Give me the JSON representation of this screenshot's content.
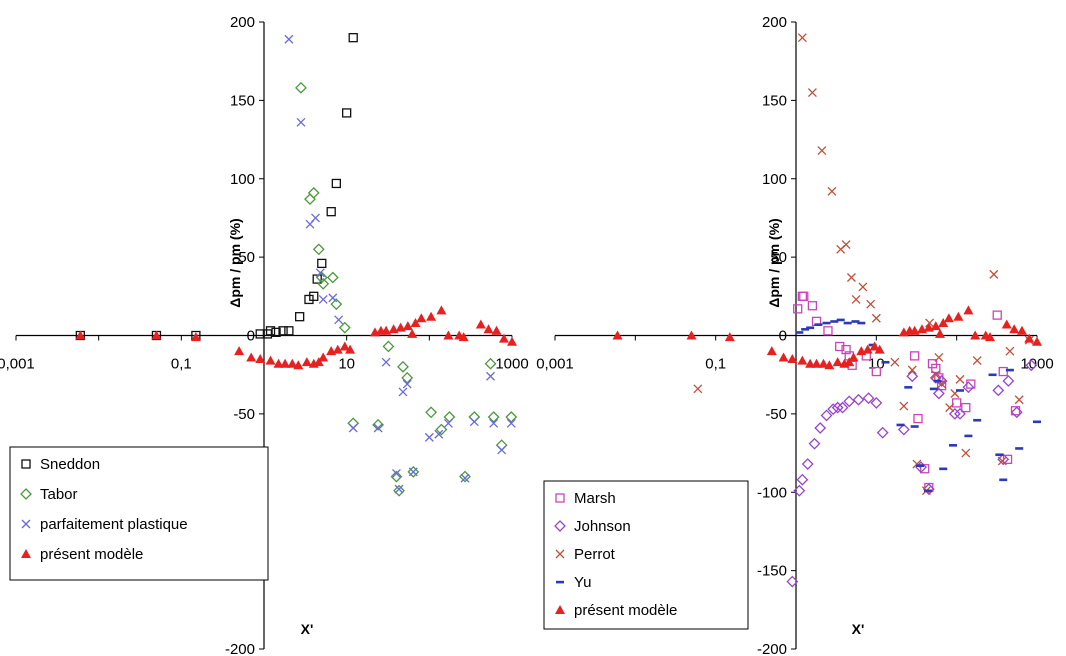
{
  "chart_data": [
    {
      "type": "scatter",
      "xlabel": "X'",
      "ylabel": "Δpm / pm (%)",
      "xscale": "log",
      "xlim": [
        0.001,
        1000
      ],
      "ylim": [
        -200,
        200
      ],
      "x_ticks": [
        "0,001",
        "0,1",
        "10",
        "1000"
      ],
      "y_ticks": [
        "200",
        "150",
        "100",
        "50",
        "0",
        "-50",
        "-100",
        "-150",
        "-200"
      ],
      "legend_position": "bottom-left",
      "series": [
        {
          "name": "Sneddon",
          "marker": "square",
          "color": "#111111",
          "points": [
            [
              0.006,
              0
            ],
            [
              0.05,
              0
            ],
            [
              0.15,
              0
            ],
            [
              0.9,
              1
            ],
            [
              1.1,
              1
            ],
            [
              1.2,
              3
            ],
            [
              1.4,
              2
            ],
            [
              1.7,
              3
            ],
            [
              2.0,
              3
            ],
            [
              2.7,
              12
            ],
            [
              3.5,
              23
            ],
            [
              4,
              25
            ],
            [
              4.4,
              36
            ],
            [
              5,
              46
            ],
            [
              6.5,
              79
            ],
            [
              7.5,
              97
            ],
            [
              10,
              142
            ],
            [
              12,
              190
            ]
          ]
        },
        {
          "name": "Tabor",
          "marker": "diamond",
          "color": "#4a9a3a",
          "points": [
            [
              2.8,
              158
            ],
            [
              3.6,
              87
            ],
            [
              4,
              91
            ],
            [
              4.6,
              55
            ],
            [
              5,
              37
            ],
            [
              5.2,
              33
            ],
            [
              6.8,
              37
            ],
            [
              7.5,
              20
            ],
            [
              9.5,
              5
            ],
            [
              12,
              -56
            ],
            [
              24,
              -57
            ],
            [
              32,
              -7
            ],
            [
              40,
              -90
            ],
            [
              43,
              -99
            ],
            [
              48,
              -20
            ],
            [
              54,
              -27
            ],
            [
              64,
              -87
            ],
            [
              105,
              -49
            ],
            [
              140,
              -60
            ],
            [
              175,
              -52
            ],
            [
              270,
              -90
            ],
            [
              350,
              -52
            ],
            [
              550,
              -18
            ],
            [
              600,
              -52
            ],
            [
              750,
              -70
            ],
            [
              980,
              -52
            ]
          ]
        },
        {
          "name": "parfaitement plastique",
          "marker": "x",
          "color": "#6a6ae0",
          "points": [
            [
              2.0,
              189
            ],
            [
              2.8,
              136
            ],
            [
              3.6,
              71
            ],
            [
              4.2,
              75
            ],
            [
              4.8,
              40
            ],
            [
              5.2,
              23
            ],
            [
              6.8,
              24
            ],
            [
              8,
              10
            ],
            [
              12,
              -59
            ],
            [
              24,
              -59
            ],
            [
              30,
              -17
            ],
            [
              40,
              -88
            ],
            [
              43,
              -98
            ],
            [
              48,
              -36
            ],
            [
              54,
              -31
            ],
            [
              64,
              -87
            ],
            [
              100,
              -65
            ],
            [
              130,
              -63
            ],
            [
              170,
              -56
            ],
            [
              270,
              -91
            ],
            [
              350,
              -55
            ],
            [
              550,
              -26
            ],
            [
              600,
              -56
            ],
            [
              750,
              -73
            ],
            [
              980,
              -56
            ]
          ]
        },
        {
          "name": "présent modèle",
          "marker": "triangle",
          "color": "#e82020",
          "points": [
            [
              0.006,
              0
            ],
            [
              0.05,
              0
            ],
            [
              0.15,
              -1
            ],
            [
              0.5,
              -10
            ],
            [
              0.7,
              -14
            ],
            [
              0.9,
              -15
            ],
            [
              1.2,
              -16
            ],
            [
              1.5,
              -18
            ],
            [
              1.8,
              -18
            ],
            [
              2.2,
              -18
            ],
            [
              2.6,
              -19
            ],
            [
              3.3,
              -17
            ],
            [
              4,
              -18
            ],
            [
              4.6,
              -17
            ],
            [
              5.2,
              -14
            ],
            [
              6.5,
              -10
            ],
            [
              7.8,
              -9
            ],
            [
              9.5,
              -7
            ],
            [
              11,
              -9
            ],
            [
              22,
              2
            ],
            [
              26,
              3
            ],
            [
              30,
              3
            ],
            [
              37,
              4
            ],
            [
              45,
              5
            ],
            [
              55,
              6
            ],
            [
              62,
              1
            ],
            [
              68,
              8
            ],
            [
              80,
              11
            ],
            [
              105,
              12
            ],
            [
              140,
              16
            ],
            [
              170,
              0
            ],
            [
              230,
              0
            ],
            [
              260,
              -1
            ],
            [
              420,
              7
            ],
            [
              520,
              4
            ],
            [
              650,
              3
            ],
            [
              800,
              -2
            ],
            [
              1000,
              -4
            ]
          ]
        }
      ]
    },
    {
      "type": "scatter",
      "xlabel": "X'",
      "ylabel": "Δpm / pm (%)",
      "xscale": "log",
      "xlim": [
        0.001,
        1000
      ],
      "ylim": [
        -200,
        200
      ],
      "x_ticks": [
        "0,001",
        "0,1",
        "10",
        "1000"
      ],
      "y_ticks": [
        "200",
        "150",
        "100",
        "50",
        "0",
        "-50",
        "-100",
        "-150",
        "-200"
      ],
      "legend_position": "bottom-left",
      "series": [
        {
          "name": "Marsh",
          "marker": "square",
          "color": "#cc44bb",
          "points": [
            [
              1.05,
              17
            ],
            [
              1.2,
              25
            ],
            [
              1.25,
              25
            ],
            [
              1.6,
              19
            ],
            [
              1.8,
              9
            ],
            [
              2.5,
              3
            ],
            [
              3.5,
              -7
            ],
            [
              4.2,
              -9
            ],
            [
              4.6,
              -13
            ],
            [
              5,
              -19
            ],
            [
              7.5,
              -13
            ],
            [
              10,
              -23
            ],
            [
              30,
              -13
            ],
            [
              33,
              -53
            ],
            [
              40,
              -85
            ],
            [
              45,
              -97
            ],
            [
              50,
              -18
            ],
            [
              55,
              -21
            ],
            [
              60,
              -27
            ],
            [
              65,
              -32
            ],
            [
              100,
              -43
            ],
            [
              130,
              -46
            ],
            [
              150,
              -31
            ],
            [
              320,
              13
            ],
            [
              380,
              -23
            ],
            [
              430,
              -79
            ],
            [
              540,
              -48
            ]
          ]
        },
        {
          "name": "Johnson",
          "marker": "diamond",
          "color": "#9944cc",
          "points": [
            [
              0.9,
              -157
            ],
            [
              1.1,
              -99
            ],
            [
              1.2,
              -92
            ],
            [
              1.4,
              -82
            ],
            [
              1.7,
              -69
            ],
            [
              2,
              -59
            ],
            [
              2.4,
              -51
            ],
            [
              2.9,
              -47
            ],
            [
              3.3,
              -46
            ],
            [
              3.8,
              -46
            ],
            [
              4.6,
              -42
            ],
            [
              6,
              -41
            ],
            [
              8,
              -40
            ],
            [
              10,
              -43
            ],
            [
              12,
              -62
            ],
            [
              22,
              -60
            ],
            [
              28,
              -26
            ],
            [
              36,
              -84
            ],
            [
              45,
              -98
            ],
            [
              55,
              -27
            ],
            [
              60,
              -37
            ],
            [
              65,
              -29
            ],
            [
              95,
              -50
            ],
            [
              110,
              -50
            ],
            [
              140,
              -33
            ],
            [
              330,
              -35
            ],
            [
              380,
              -79
            ],
            [
              440,
              -29
            ],
            [
              560,
              -49
            ],
            [
              850,
              -19
            ]
          ]
        },
        {
          "name": "Perrot",
          "marker": "x",
          "color": "#c0503a",
          "points": [
            [
              0.06,
              -34
            ],
            [
              1.2,
              190
            ],
            [
              1.6,
              155
            ],
            [
              2.1,
              118
            ],
            [
              2.8,
              92
            ],
            [
              3.6,
              55
            ],
            [
              4.2,
              58
            ],
            [
              4.9,
              37
            ],
            [
              5.6,
              23
            ],
            [
              6.8,
              31
            ],
            [
              8.5,
              20
            ],
            [
              10,
              11
            ],
            [
              17,
              -17
            ],
            [
              22,
              -45
            ],
            [
              28,
              -22
            ],
            [
              32,
              -82
            ],
            [
              42,
              -99
            ],
            [
              46,
              8
            ],
            [
              55,
              -25
            ],
            [
              60,
              -14
            ],
            [
              65,
              -31
            ],
            [
              82,
              -46
            ],
            [
              95,
              -37
            ],
            [
              110,
              -28
            ],
            [
              130,
              -75
            ],
            [
              180,
              -16
            ],
            [
              290,
              39
            ],
            [
              370,
              -80
            ],
            [
              460,
              -10
            ],
            [
              600,
              -41
            ],
            [
              800,
              -3
            ]
          ]
        },
        {
          "name": "Yu",
          "marker": "dash",
          "color": "#2a3ab8",
          "points": [
            [
              1.1,
              2
            ],
            [
              1.3,
              4
            ],
            [
              1.5,
              5
            ],
            [
              1.9,
              7
            ],
            [
              2.4,
              8
            ],
            [
              3,
              9
            ],
            [
              3.6,
              10
            ],
            [
              4.4,
              8
            ],
            [
              5.5,
              9
            ],
            [
              6.5,
              8
            ],
            [
              9,
              -6
            ],
            [
              13,
              -17
            ],
            [
              20,
              -57
            ],
            [
              25,
              -33
            ],
            [
              30,
              -58
            ],
            [
              35,
              -83
            ],
            [
              44,
              -99
            ],
            [
              52,
              -34
            ],
            [
              58,
              -29
            ],
            [
              68,
              -85
            ],
            [
              90,
              -70
            ],
            [
              110,
              -35
            ],
            [
              140,
              -64
            ],
            [
              180,
              -54
            ],
            [
              280,
              -25
            ],
            [
              340,
              -76
            ],
            [
              380,
              -92
            ],
            [
              460,
              -22
            ],
            [
              600,
              -72
            ],
            [
              1000,
              -55
            ]
          ]
        },
        {
          "name": "présent modèle",
          "marker": "triangle",
          "color": "#e82020",
          "points": [
            [
              0.006,
              0
            ],
            [
              0.05,
              0
            ],
            [
              0.15,
              -1
            ],
            [
              0.5,
              -10
            ],
            [
              0.7,
              -14
            ],
            [
              0.9,
              -15
            ],
            [
              1.2,
              -16
            ],
            [
              1.5,
              -18
            ],
            [
              1.8,
              -18
            ],
            [
              2.2,
              -18
            ],
            [
              2.6,
              -19
            ],
            [
              3.3,
              -17
            ],
            [
              4,
              -18
            ],
            [
              4.6,
              -17
            ],
            [
              5.2,
              -14
            ],
            [
              6.5,
              -10
            ],
            [
              7.8,
              -9
            ],
            [
              9.5,
              -7
            ],
            [
              11,
              -9
            ],
            [
              22,
              2
            ],
            [
              26,
              3
            ],
            [
              30,
              3
            ],
            [
              37,
              4
            ],
            [
              45,
              5
            ],
            [
              55,
              6
            ],
            [
              62,
              1
            ],
            [
              68,
              8
            ],
            [
              80,
              11
            ],
            [
              105,
              12
            ],
            [
              140,
              16
            ],
            [
              170,
              0
            ],
            [
              230,
              0
            ],
            [
              260,
              -1
            ],
            [
              420,
              7
            ],
            [
              520,
              4
            ],
            [
              650,
              3
            ],
            [
              800,
              -2
            ],
            [
              1000,
              -4
            ]
          ]
        }
      ]
    }
  ]
}
